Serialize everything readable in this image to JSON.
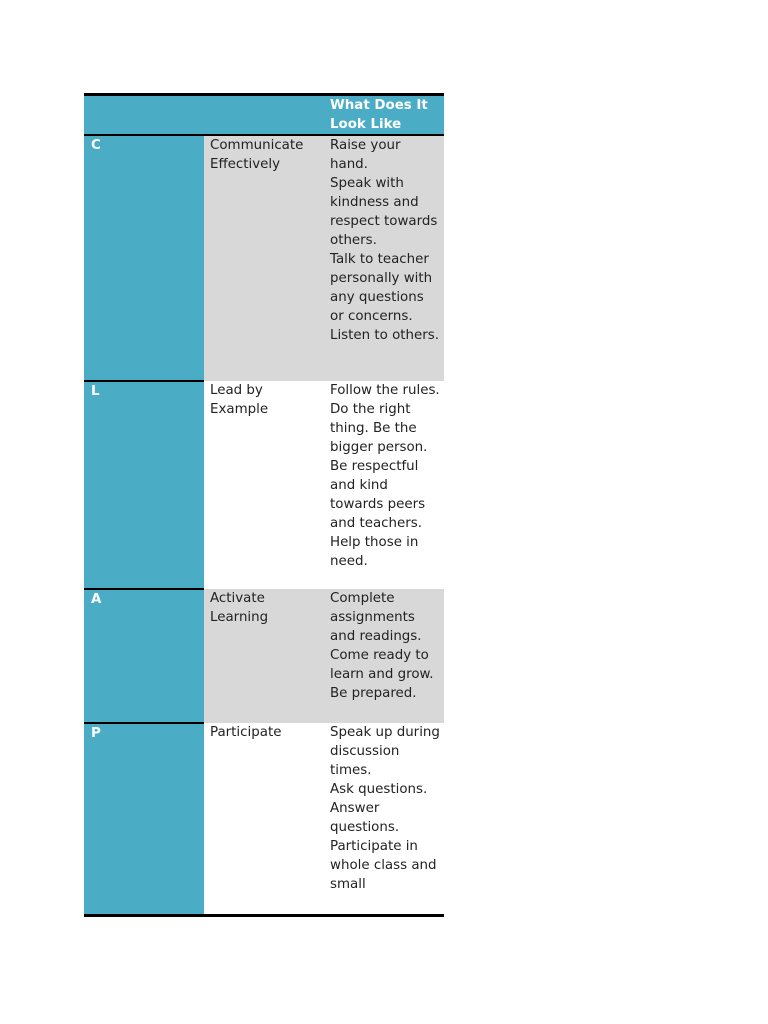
{
  "table": {
    "header": {
      "col1": "",
      "col2": "",
      "col3": "What Does It Look Like"
    },
    "rows": [
      {
        "letter": "C",
        "word": "Communicate Effectively",
        "looks": [
          "Raise your hand.",
          "Speak with kindness and respect towards others.",
          "Talk to teacher personally with any questions or concerns.",
          "Listen to others."
        ]
      },
      {
        "letter": "L",
        "word": "Lead by Example",
        "looks": [
          "Follow the rules.",
          "Do the right thing. Be the bigger person.",
          "Be respectful and kind towards peers and teachers.",
          "Help those in need."
        ]
      },
      {
        "letter": "A",
        "word": "Activate Learning",
        "looks": [
          "Complete assignments and readings.",
          "Come ready to learn and grow.",
          "Be prepared."
        ]
      },
      {
        "letter": "P",
        "word": "Participate",
        "looks": [
          "Speak up during discussion times.",
          "Ask questions.",
          "Answer questions.",
          "Participate in whole class and small"
        ]
      }
    ]
  },
  "colors": {
    "accent": "#4bacc6",
    "shade": "#d8d8d8",
    "rule": "#000000"
  }
}
